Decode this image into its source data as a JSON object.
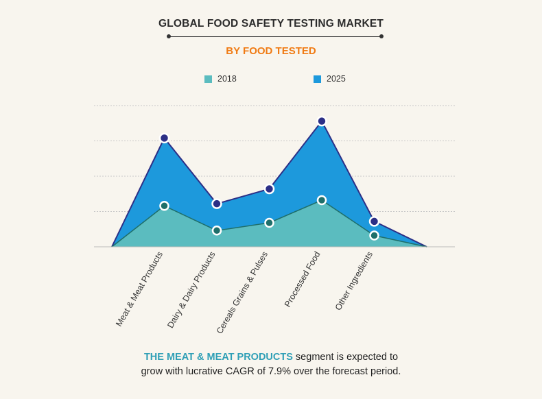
{
  "header": {
    "title": "GLOBAL FOOD SAFETY TESTING MARKET",
    "subtitle": "BY  FOOD TESTED"
  },
  "colors": {
    "series_2018_fill": "#5bbcbf",
    "series_2025_fill": "#1d99dc",
    "line_2025": "#2c2f86",
    "line_2018": "#1f6f6a",
    "subtitle": "#f07b14",
    "highlight": "#2f9fb6",
    "gridline": "#c8c8c8"
  },
  "chart_data": {
    "type": "area",
    "title": "GLOBAL FOOD SAFETY TESTING MARKET",
    "subtitle": "BY  FOOD TESTED",
    "categories": [
      "",
      "Meat & Meat Products",
      "Dairy & Dairy Products",
      "Cereals Grains & Pulses",
      "Processed Food",
      "Other Ingredients",
      ""
    ],
    "series": [
      {
        "name": "2018",
        "values": [
          0,
          58,
          23,
          34,
          66,
          16,
          0
        ]
      },
      {
        "name": "2025",
        "values": [
          0,
          154,
          61,
          82,
          178,
          36,
          0
        ]
      }
    ],
    "ylim": [
      0,
      200
    ],
    "gridlines": 4,
    "y_tick_labels_visible": false,
    "legend_position": "top",
    "stacked": false
  },
  "footer": {
    "highlight": "THE MEAT & MEAT PRODUCTS",
    "line1_rest": " segment is expected to",
    "line2": "grow with lucrative CAGR of 7.9% over the forecast period."
  }
}
